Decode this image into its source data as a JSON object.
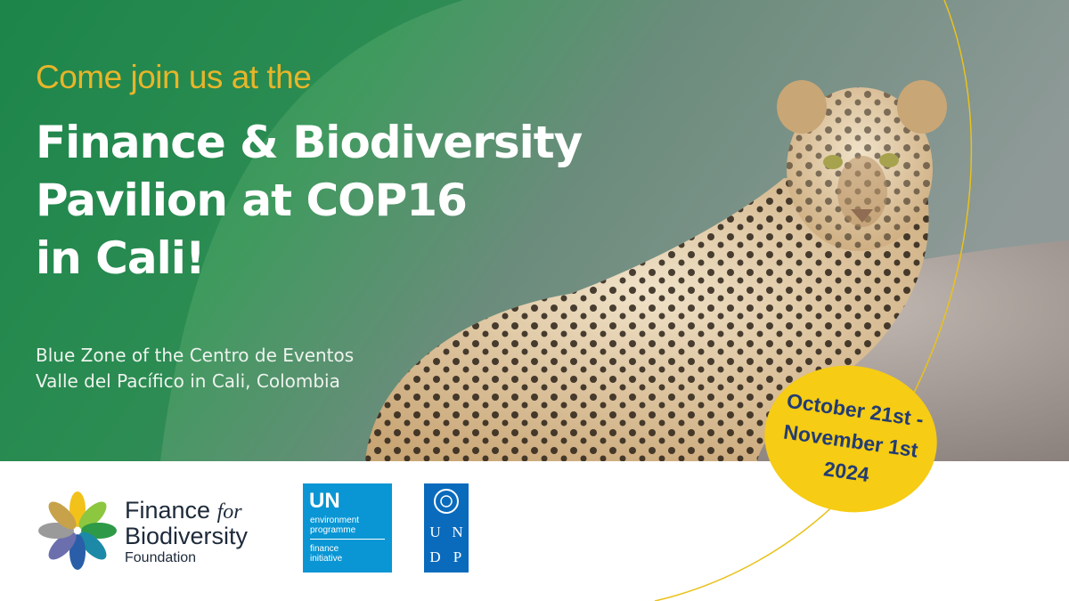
{
  "intro": "Come join us at the",
  "headline": [
    "Finance & Biodiversity",
    "Pavilion at COP16",
    "in Cali!"
  ],
  "location": [
    "Blue Zone of the Centro de Eventos",
    "Valle del Pacífico in Cali, Colombia"
  ],
  "dates": [
    "October 21st -",
    "November 1st",
    "2024"
  ],
  "logos": {
    "ffb": {
      "name": "Finance",
      "for": "for",
      "name2": "Biodiversity",
      "sub": "Foundation"
    },
    "unep": {
      "un": "UN",
      "lines": [
        "environment",
        "programme",
        "finance",
        "initiative"
      ]
    },
    "undp": [
      "U",
      "N",
      "D",
      "P"
    ]
  }
}
